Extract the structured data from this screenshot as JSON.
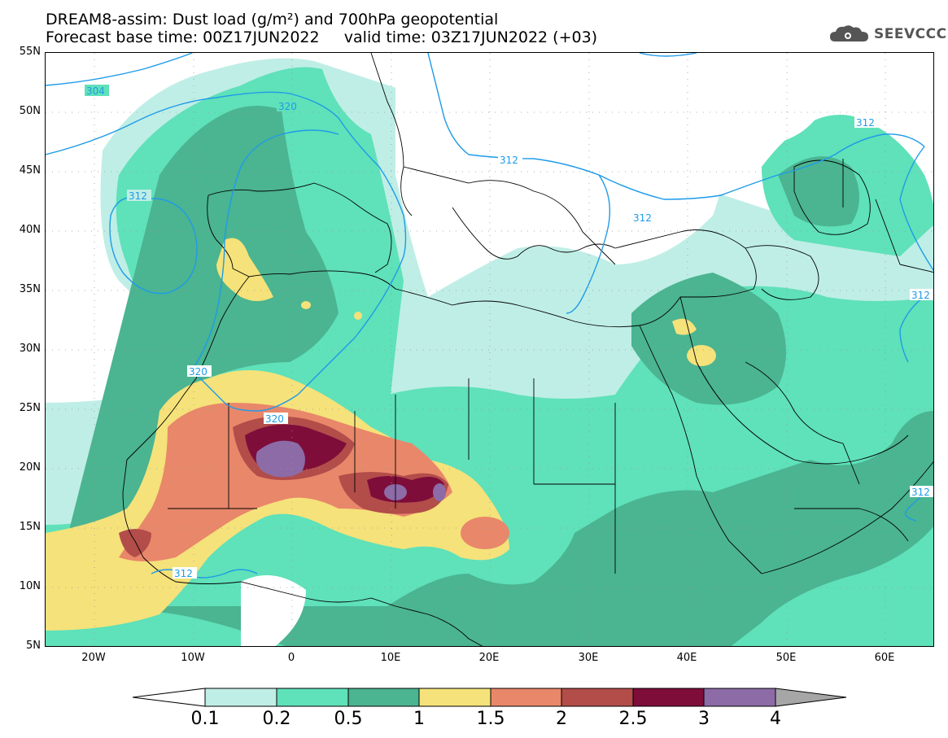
{
  "header": {
    "title_line1": "DREAM8-assim: Dust load (g/m²) and 700hPa geopotential",
    "title_line2": "Forecast base time: 00Z17JUN2022     valid time: 03Z17JUN2022 (+03)"
  },
  "logo": {
    "text": "SEEVCCC",
    "icon": "cloud-gear-icon"
  },
  "map": {
    "lat_labels": [
      "55N",
      "50N",
      "45N",
      "40N",
      "35N",
      "30N",
      "25N",
      "20N",
      "15N",
      "10N",
      "5N"
    ],
    "lon_labels": [
      "20W",
      "10W",
      "0",
      "10E",
      "20E",
      "30E",
      "40E",
      "50E",
      "60E"
    ],
    "lon_range": [
      -25,
      65
    ],
    "lat_range": [
      5,
      55
    ],
    "contour_labels": [
      "304",
      "312",
      "320",
      "312",
      "312",
      "320",
      "320",
      "312",
      "312",
      "312",
      "312"
    ],
    "colors": {
      "background": "#ffffff",
      "level_0_1": "#bfeee6",
      "level_0_2": "#5fe1b9",
      "level_0_5": "#4bb491",
      "level_1": "#f5e27a",
      "level_1_5": "#e9876a",
      "level_2": "#b24d4a",
      "level_2_5": "#7e0d3a",
      "level_3": "#8c6ba7",
      "geopotential_line": "#1e9be8",
      "coastline": "#000000"
    }
  },
  "colorbar": {
    "labels": [
      "0.1",
      "0.2",
      "0.5",
      "1",
      "1.5",
      "2",
      "2.5",
      "3",
      "4"
    ],
    "colors": [
      "#ffffff",
      "#bfeee6",
      "#5fe1b9",
      "#4bb491",
      "#f5e27a",
      "#e9876a",
      "#b24d4a",
      "#7e0d3a",
      "#8c6ba7",
      "#a6a6a6"
    ]
  }
}
